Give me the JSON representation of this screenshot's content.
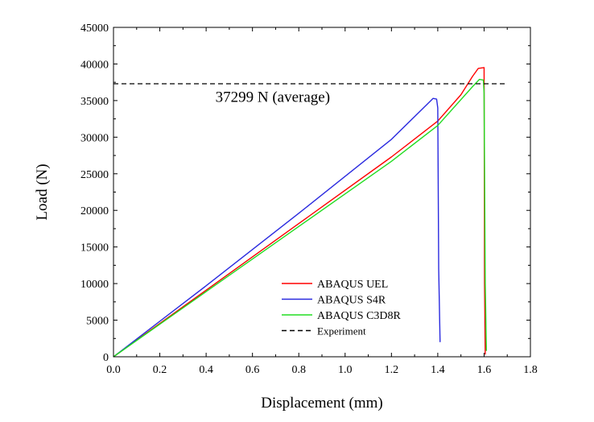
{
  "chart_data": {
    "type": "line",
    "title": "",
    "xlabel": "Displacement (mm)",
    "ylabel": "Load (N)",
    "xlim": [
      0.0,
      1.8
    ],
    "ylim": [
      0,
      45000
    ],
    "xticks": [
      "0.0",
      "0.2",
      "0.4",
      "0.6",
      "0.8",
      "1.0",
      "1.2",
      "1.4",
      "1.6",
      "1.8"
    ],
    "yticks": [
      "0",
      "5000",
      "10000",
      "15000",
      "20000",
      "25000",
      "30000",
      "35000",
      "40000",
      "45000"
    ],
    "grid": false,
    "legend_position": "bottom-center",
    "series": [
      {
        "name": "ABAQUS UEL",
        "color": "#ff0000",
        "style": "solid",
        "x": [
          0.0,
          0.4,
          0.8,
          1.2,
          1.4,
          1.5,
          1.55,
          1.575,
          1.6,
          1.602,
          1.605
        ],
        "y": [
          0,
          9100,
          18200,
          27300,
          32200,
          35800,
          38300,
          39400,
          39500,
          10000,
          300
        ]
      },
      {
        "name": "ABAQUS S4R",
        "color": "#2a2adf",
        "style": "solid",
        "x": [
          0.0,
          0.4,
          0.8,
          1.2,
          1.38,
          1.395,
          1.4,
          1.404,
          1.41
        ],
        "y": [
          0,
          9700,
          19600,
          29700,
          35300,
          35200,
          34000,
          12000,
          2000
        ]
      },
      {
        "name": "ABAQUS C3D8R",
        "color": "#22dd22",
        "style": "solid",
        "x": [
          0.0,
          0.4,
          0.8,
          1.2,
          1.4,
          1.55,
          1.58,
          1.597,
          1.6,
          1.605,
          1.61
        ],
        "y": [
          0,
          8900,
          17800,
          26700,
          31600,
          36900,
          37900,
          37800,
          36000,
          10000,
          800
        ]
      },
      {
        "name": "Experiment",
        "color": "#000000",
        "style": "dashed",
        "x": [
          0.0,
          1.7
        ],
        "y": [
          37299,
          37299
        ]
      }
    ],
    "annotations": [
      {
        "text": "37299 N (average)",
        "x": 0.44,
        "y": 34800
      }
    ]
  }
}
